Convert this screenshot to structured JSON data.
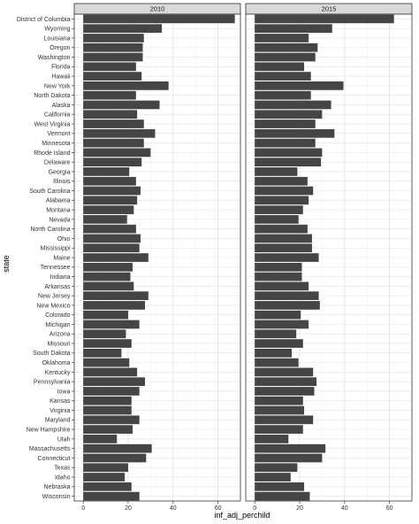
{
  "chart_data": {
    "type": "bar",
    "orientation": "horizontal",
    "facet_labels": [
      "2010",
      "2015"
    ],
    "xlabel": "inf_adj_perchild",
    "ylabel": "state",
    "xlim": [
      -4,
      70
    ],
    "x_ticks": [
      0,
      20,
      40,
      60
    ],
    "grid": true,
    "bar_color": "#454545",
    "categories": [
      "District of Columbia",
      "Wyoming",
      "Louisiana",
      "Oregon",
      "Washington",
      "Florida",
      "Hawaii",
      "New York",
      "North Dakota",
      "Alaska",
      "California",
      "West Virginia",
      "Vermont",
      "Minnesota",
      "Rhode Island",
      "Delaware",
      "Georgia",
      "Illinois",
      "South Carolina",
      "Alabama",
      "Montana",
      "Nevada",
      "North Carolina",
      "Ohio",
      "Mississippi",
      "Maine",
      "Tennessee",
      "Indiana",
      "Arkansas",
      "New Jersey",
      "New Mexico",
      "Colorado",
      "Michigan",
      "Arizona",
      "Missouri",
      "South Dakota",
      "Oklahoma",
      "Kentucky",
      "Pennsylvania",
      "Iowa",
      "Kansas",
      "Virginia",
      "Maryland",
      "New Hampshire",
      "Utah",
      "Massachusetts",
      "Connecticut",
      "Texas",
      "Idaho",
      "Nebraska",
      "Wisconsin"
    ],
    "series": [
      {
        "name": "2010",
        "values": [
          67.5,
          35,
          27,
          26.5,
          26.5,
          23.5,
          26,
          38,
          23.5,
          34,
          24,
          27,
          32,
          27,
          30,
          26,
          20.5,
          23.5,
          25.5,
          24,
          22.5,
          19.5,
          23.5,
          25.5,
          25,
          29,
          22,
          21,
          22.5,
          29,
          27.5,
          20,
          25,
          19,
          21.5,
          17,
          20.5,
          24,
          27.5,
          25,
          21.5,
          21.5,
          25,
          22,
          15,
          30.5,
          28,
          20,
          18.5,
          21.5,
          25
        ]
      },
      {
        "name": "2015",
        "values": [
          62,
          34.5,
          24,
          28,
          27,
          22,
          25,
          39.5,
          25,
          34,
          30,
          27,
          35.5,
          27,
          30,
          29.5,
          19,
          23.5,
          26,
          24,
          21.5,
          19.5,
          23.5,
          25.5,
          25.5,
          28.5,
          21,
          21,
          24,
          28.5,
          29,
          20.5,
          24,
          18.5,
          21.5,
          16.5,
          19.5,
          26,
          27.5,
          26.5,
          21.5,
          22,
          26,
          21.5,
          15,
          31.5,
          30,
          19,
          16,
          22,
          24.5
        ]
      }
    ]
  }
}
